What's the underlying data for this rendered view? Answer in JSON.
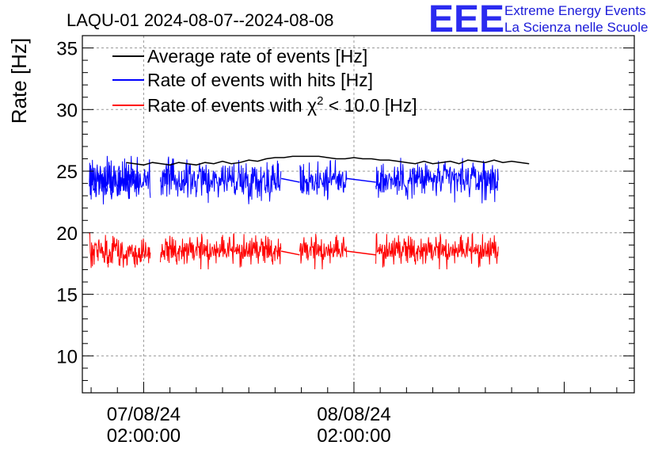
{
  "chart_data": {
    "type": "line",
    "title": "LAQU-01 2024-08-07--2024-08-08",
    "ylabel": "Rate [Hz]",
    "xlabel": "",
    "ylim": [
      7,
      36
    ],
    "yticks": [
      10,
      15,
      20,
      25,
      30,
      35
    ],
    "xlim_hours": [
      -5.0,
      58.0
    ],
    "grid": true,
    "xtick_labels": [
      {
        "hour": 2,
        "date": "07/08/24",
        "time": "02:00:00"
      },
      {
        "hour": 26,
        "date": "08/08/24",
        "time": "02:00:00"
      }
    ],
    "legend_position": "top-left",
    "series": [
      {
        "name": "Average rate of events [Hz]",
        "color": "#000000",
        "x": [
          0,
          1,
          2,
          3,
          4,
          5,
          6,
          7,
          8,
          9,
          10,
          11,
          12,
          13,
          14,
          15,
          16,
          17,
          18,
          19,
          20,
          21,
          22,
          23,
          24,
          25,
          26,
          27,
          28,
          29,
          30,
          31,
          32,
          33,
          34,
          35,
          36,
          37,
          38,
          39,
          40,
          41,
          42,
          43,
          44,
          45,
          46
        ],
        "y": [
          25.7,
          25.6,
          25.5,
          25.7,
          25.6,
          25.5,
          25.7,
          25.6,
          25.5,
          25.7,
          25.6,
          25.8,
          25.6,
          25.7,
          25.9,
          25.8,
          26.0,
          26.1,
          26.1,
          26.2,
          26.2,
          26.2,
          26.2,
          26.1,
          26.0,
          26.0,
          26.1,
          26.0,
          26.0,
          25.9,
          25.9,
          25.8,
          25.7,
          25.6,
          25.8,
          25.6,
          25.7,
          25.8,
          25.6,
          25.9,
          25.8,
          25.7,
          25.9,
          25.7,
          25.8,
          25.7,
          25.6
        ]
      },
      {
        "name": "Rate of events with hits [Hz]",
        "color": "#0000ff",
        "mean": 24.3,
        "min": 22.3,
        "max": 26.5,
        "segments_hours": [
          [
            -4.2,
            1.7
          ],
          [
            -4.2,
            2.8
          ],
          [
            3.9,
            17.7
          ],
          [
            19.8,
            25.2
          ],
          [
            28.5,
            42.5
          ]
        ],
        "connectors_hours": [
          [
            17.7,
            19.8
          ],
          [
            25.2,
            28.5
          ]
        ]
      },
      {
        "name": "Rate of events with χ² < 10.0 [Hz]",
        "legend_text": "Rate of events with",
        "legend_symbol": "χ",
        "legend_superscript": "2",
        "legend_suffix": " < 10.0 [Hz]",
        "color": "#ff0000",
        "mean": 18.4,
        "min": 16.7,
        "max": 20.2,
        "segments_hours": [
          [
            -4.2,
            2.8
          ],
          [
            3.9,
            17.7
          ],
          [
            19.8,
            25.2
          ],
          [
            28.5,
            42.5
          ]
        ],
        "connectors_hours": [
          [
            17.7,
            19.8
          ],
          [
            25.2,
            28.5
          ]
        ]
      }
    ]
  },
  "logo": {
    "mark": "EEE",
    "line1": "Extreme Energy Events",
    "line2": "La Scienza nelle Scuole"
  }
}
